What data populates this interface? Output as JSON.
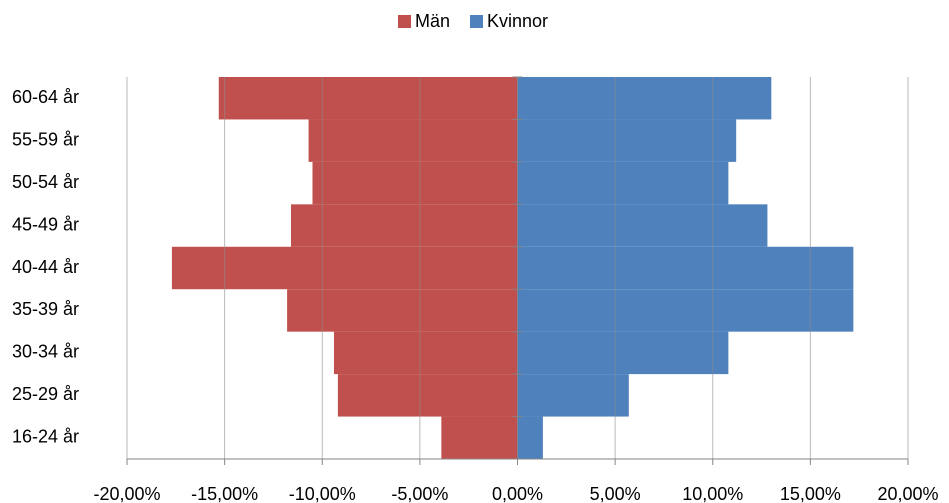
{
  "chart_data": {
    "type": "bar",
    "orientation": "horizontal",
    "categories": [
      "16-24 år",
      "25-29 år",
      "30-34 år",
      "35-39 år",
      "40-44 år",
      "45-49 år",
      "50-54 år",
      "55-59 år",
      "60-64 år"
    ],
    "series": [
      {
        "name": "Män",
        "color": "#c0504d",
        "values": [
          -3.9,
          -9.2,
          -9.4,
          -11.8,
          -17.7,
          -11.6,
          -10.5,
          -10.7,
          -15.3
        ]
      },
      {
        "name": "Kvinnor",
        "color": "#4f81bd",
        "values": [
          1.3,
          5.7,
          10.8,
          17.2,
          17.2,
          12.8,
          10.8,
          11.2,
          13.0
        ]
      }
    ],
    "xlim": [
      -20,
      20
    ],
    "xticks": [
      {
        "value": -20,
        "label": "-20,00%"
      },
      {
        "value": -15,
        "label": "-15,00%"
      },
      {
        "value": -10,
        "label": "-10,00%"
      },
      {
        "value": -5,
        "label": "-5,00%"
      },
      {
        "value": 0,
        "label": "0,00%"
      },
      {
        "value": 5,
        "label": "5,00%"
      },
      {
        "value": 10,
        "label": "10,00%"
      },
      {
        "value": 15,
        "label": "15,00%"
      },
      {
        "value": 20,
        "label": "20,00%"
      }
    ],
    "grid": true,
    "legend": "top"
  }
}
